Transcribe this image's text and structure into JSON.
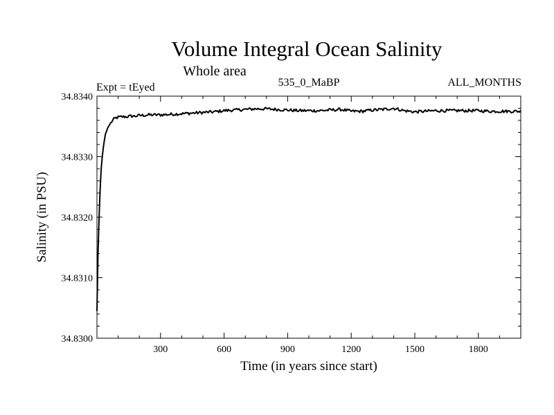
{
  "chart_data": {
    "type": "line",
    "title": "Volume Integral Ocean Salinity",
    "subtitle": "Whole area",
    "expt_label": "Expt = tEyed",
    "run_label": "535_0_MaBP",
    "months_label": "ALL_MONTHS",
    "xlabel": "Time (in years since start)",
    "ylabel": "Salinity (in PSU)",
    "xlim": [
      0,
      2000
    ],
    "ylim": [
      34.83,
      34.834
    ],
    "xticks": [
      300,
      600,
      900,
      1200,
      1500,
      1800
    ],
    "xtick_labels": [
      "300",
      "600",
      "900",
      "1200",
      "1500",
      "1800"
    ],
    "yticks": [
      34.83,
      34.831,
      34.832,
      34.833,
      34.834
    ],
    "ytick_labels": [
      "34.8300",
      "34.8310",
      "34.8320",
      "34.8330",
      "34.8340"
    ],
    "series": [
      {
        "name": "Salinity",
        "x": [
          0,
          5,
          10,
          15,
          20,
          25,
          30,
          35,
          40,
          50,
          60,
          70,
          80,
          90,
          100,
          120,
          140,
          160,
          180,
          200,
          250,
          300,
          350,
          400,
          450,
          500,
          550,
          600,
          650,
          700,
          750,
          800,
          850,
          900,
          950,
          1000,
          1050,
          1100,
          1150,
          1200,
          1250,
          1300,
          1350,
          1400,
          1450,
          1500,
          1550,
          1600,
          1650,
          1700,
          1750,
          1800,
          1850,
          1900,
          1950,
          2000
        ],
        "values": [
          34.83045,
          34.8314,
          34.832,
          34.83245,
          34.8328,
          34.833,
          34.83315,
          34.83327,
          34.83337,
          34.83347,
          34.83353,
          34.83358,
          34.83362,
          34.83364,
          34.83365,
          34.83366,
          34.83366,
          34.83367,
          34.83367,
          34.83368,
          34.83369,
          34.83369,
          34.8337,
          34.83371,
          34.83372,
          34.83373,
          34.83374,
          34.83376,
          34.83377,
          34.83378,
          34.83379,
          34.83379,
          34.83378,
          34.83377,
          34.83376,
          34.83376,
          34.83376,
          34.83377,
          34.83378,
          34.83375,
          34.83375,
          34.83377,
          34.83378,
          34.8338,
          34.83376,
          34.83374,
          34.83375,
          34.83376,
          34.83376,
          34.83376,
          34.83376,
          34.83376,
          34.83375,
          34.83375,
          34.83375,
          34.83375
        ]
      }
    ]
  }
}
